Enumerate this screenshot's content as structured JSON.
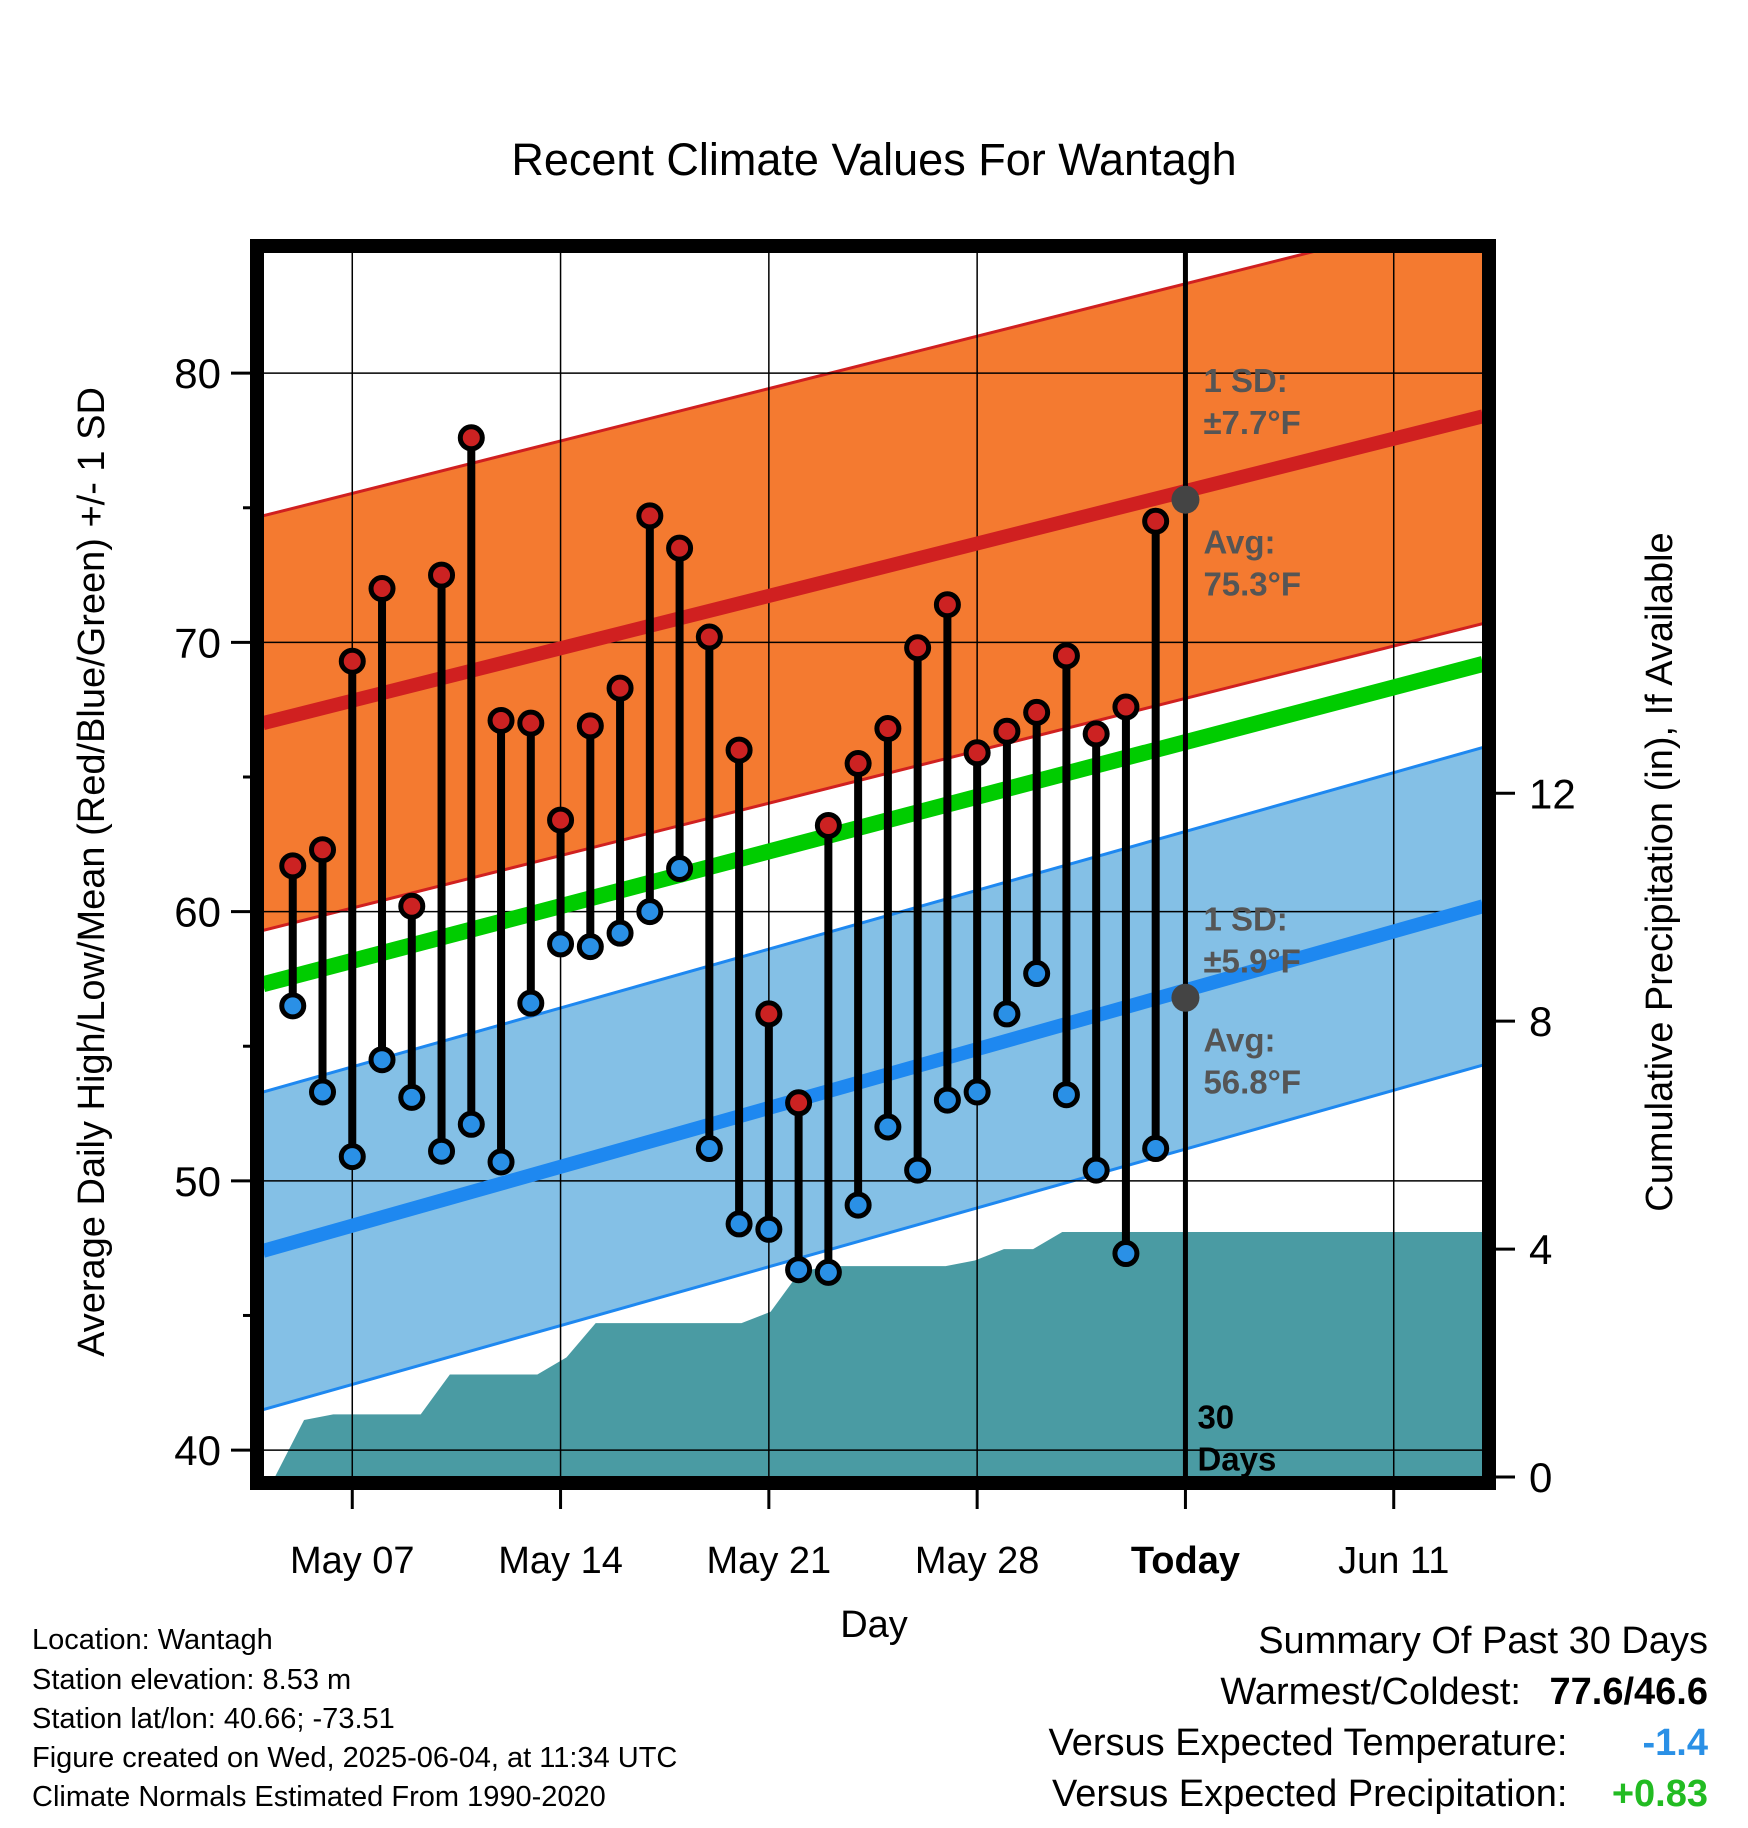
{
  "chart_data": {
    "type": "line",
    "title": "Recent Climate Values For Wantagh",
    "xlabel": "Day",
    "ylabel": "Average Daily High/Low/Mean (Red/Blue/Green) +/- 1 SD",
    "ylabel_right": "Cumulative Precipitation (in), If Available",
    "x_tick_labels": [
      "May 07",
      "May 14",
      "May 21",
      "May 28",
      "Today",
      "Jun 11"
    ],
    "y_ticks": [
      "40",
      "50",
      "60",
      "70",
      "80"
    ],
    "y2_ticks": [
      "0",
      "4",
      "8",
      "12"
    ],
    "x_range_days": [
      -31,
      10
    ],
    "ylim": [
      39,
      84.5
    ],
    "y2lim": [
      0,
      21.5
    ],
    "today_label": [
      "30",
      "Days"
    ],
    "daily_high": [
      61.7,
      62.3,
      69.3,
      72.0,
      60.2,
      72.5,
      77.6,
      67.1,
      67.0,
      63.4,
      66.9,
      68.3,
      74.7,
      73.5,
      70.2,
      66.0,
      56.2,
      52.9,
      63.2,
      65.5,
      66.8,
      69.8,
      71.4,
      65.9,
      66.7,
      67.4,
      69.5,
      66.6,
      67.6,
      74.5
    ],
    "daily_low": [
      56.5,
      53.3,
      50.9,
      54.5,
      53.1,
      51.1,
      52.1,
      50.7,
      56.6,
      58.8,
      58.7,
      59.2,
      60.0,
      61.6,
      51.2,
      48.4,
      48.2,
      46.7,
      46.6,
      49.1,
      52.0,
      50.4,
      53.0,
      53.3,
      56.2,
      57.7,
      53.2,
      50.4,
      47.3,
      51.2
    ],
    "normal_high": {
      "start": 67.0,
      "end": 78.4,
      "today": 75.3,
      "sd": 7.7,
      "sd_label": [
        "1 SD:",
        "±7.7°F"
      ],
      "avg_label": [
        "Avg:",
        "75.3°F"
      ]
    },
    "normal_low": {
      "start": 47.4,
      "end": 60.2,
      "today": 56.8,
      "sd": 5.9,
      "sd_label": [
        "1 SD:",
        "±5.9°F"
      ],
      "avg_label": [
        "Avg:",
        "56.8°F"
      ]
    },
    "normal_mean": {
      "start": 57.3,
      "end": 69.2
    },
    "cumulative_precip": [
      0.0,
      1.0,
      1.1,
      1.1,
      1.1,
      1.1,
      1.8,
      1.8,
      1.8,
      1.8,
      2.1,
      2.7,
      2.7,
      2.7,
      2.7,
      2.7,
      2.7,
      2.9,
      3.6,
      3.7,
      3.7,
      3.7,
      3.7,
      3.7,
      3.8,
      4.0,
      4.0,
      4.3,
      4.3,
      4.3,
      4.3,
      4.3
    ],
    "precip_end": 4.3,
    "colors": {
      "high_band": "#f47a30",
      "high_line": "#d02020",
      "high_edge": "#d02020",
      "low_band": "#84c0e6",
      "low_line": "#1e88f0",
      "low_edge": "#1e88f0",
      "mean_line": "#00cc00",
      "precip": "#4a9ba3",
      "high_dot": "#cc2222",
      "low_dot": "#2a90e6",
      "today_dot": "#444444",
      "label_gray": "#555555"
    }
  },
  "info": {
    "location": "Location: Wantagh",
    "elevation": "Station elevation: 8.53 m",
    "latlon": "Station lat/lon: 40.66; -73.51",
    "created": "Figure created on Wed, 2025-06-04, at 11:34 UTC",
    "normals": "Climate Normals Estimated From 1990-2020"
  },
  "summary": {
    "title": "Summary Of Past 30 Days",
    "warmest_label": "Warmest/Coldest:",
    "warmest_value": "77.6/46.6",
    "temp_label": "Versus Expected Temperature:",
    "temp_value": "-1.4",
    "temp_color": "#2a90e6",
    "precip_label": "Versus Expected Precipitation:",
    "precip_value": "+0.83",
    "precip_color": "#22bb22"
  }
}
